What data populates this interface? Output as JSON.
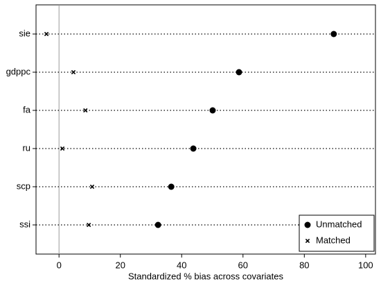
{
  "chart_data": {
    "type": "dot",
    "xlabel": "Standardized % bias across covariates",
    "categories": [
      "sie",
      "gdppc",
      "fa",
      "ru",
      "scp",
      "ssi"
    ],
    "series": [
      {
        "name": "Unmatched",
        "color": "#000000",
        "marker": "circle",
        "values": [
          89.6,
          58.7,
          50.1,
          43.8,
          36.6,
          32.3
        ]
      },
      {
        "name": "Matched",
        "color": "#000000",
        "marker": "x",
        "values": [
          -4.1,
          4.7,
          8.6,
          1.1,
          10.8,
          9.7
        ]
      }
    ],
    "xlim": [
      -7.5,
      103.2
    ],
    "xticks": [
      0,
      20,
      40,
      60,
      80,
      100
    ],
    "xline": 0,
    "legend": "lower right"
  }
}
